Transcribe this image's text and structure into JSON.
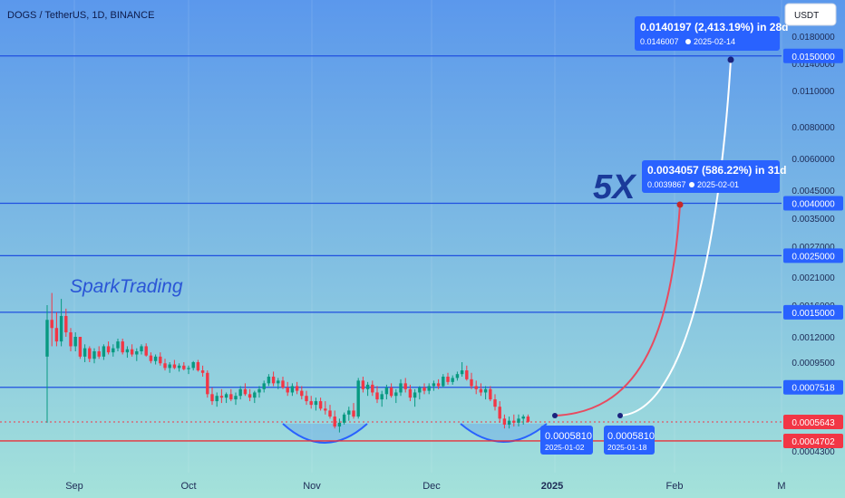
{
  "header": {
    "symbol_line": "DOGS / TetherUS, 1D, BINANCE",
    "currency_button": "USDT"
  },
  "watermark": "SparkTrading",
  "annotation_5x": "5X",
  "colors": {
    "bg_top": "#5b98ec",
    "bg_bottom": "#a4e2da",
    "level_blue": "#1f4fe0",
    "level_red": "#e8303a",
    "label_blue": "#2962ff",
    "label_red": "#f23645",
    "candle_up": "#089981",
    "candle_down": "#f23645",
    "arrow_red": "#e84a5f",
    "arrow_white": "#ffffff",
    "bowl": "#2962ff"
  },
  "chart_data": {
    "type": "candlestick",
    "title": "DOGS / TetherUS, 1D, BINANCE",
    "y_axis": {
      "scale": "log",
      "ticks": [
        "0.0180000",
        "0.0140000",
        "0.0110000",
        "0.0080000",
        "0.0060000",
        "0.0045000",
        "0.0035000",
        "0.0027000",
        "0.0021000",
        "0.0016000",
        "0.0012000",
        "0.0009500",
        "0.0007500",
        "0.0005643",
        "0.0004300"
      ]
    },
    "x_axis": {
      "ticks": [
        "Sep",
        "Oct",
        "Nov",
        "Dec",
        "2025",
        "Feb",
        "M"
      ]
    },
    "price_levels": [
      {
        "label": "0.0150000",
        "value": 0.015,
        "color": "blue"
      },
      {
        "label": "0.0040000",
        "value": 0.004,
        "color": "blue"
      },
      {
        "label": "0.0025000",
        "value": 0.0025,
        "color": "blue"
      },
      {
        "label": "0.0015000",
        "value": 0.0015,
        "color": "blue"
      },
      {
        "label": "0.0007518",
        "value": 0.0007518,
        "color": "blue"
      },
      {
        "label": "0.0004702",
        "value": 0.0004702,
        "color": "red"
      }
    ],
    "current_price": {
      "label": "0.0005643",
      "value": 0.0005643
    },
    "projections": [
      {
        "from_price": "0.0005810",
        "from_date": "2025-01-02",
        "to_price": 0.0039867,
        "to_date": "2025-02-01",
        "change_text": "0.0034057 (586.22%) in 31d",
        "target_text": "0.0039867",
        "target_date": "2025-02-01",
        "color": "red"
      },
      {
        "from_price": "0.0005810",
        "from_date": "2025-01-18",
        "to_price": 0.0146007,
        "to_date": "2025-02-14",
        "change_text": "0.0140197 (2,413.19%) in 28d",
        "target_text": "0.0146007",
        "target_date": "2025-02-14",
        "color": "white"
      }
    ],
    "candles": [
      [
        0.001,
        0.0016,
        0.00056,
        0.0014
      ],
      [
        0.0014,
        0.0018,
        0.0011,
        0.0013
      ],
      [
        0.0013,
        0.0015,
        0.0011,
        0.00115
      ],
      [
        0.00115,
        0.0017,
        0.0011,
        0.00145
      ],
      [
        0.00145,
        0.00155,
        0.0012,
        0.00125
      ],
      [
        0.00125,
        0.0013,
        0.00105,
        0.0011
      ],
      [
        0.0011,
        0.00125,
        0.00105,
        0.0012
      ],
      [
        0.0012,
        0.0012,
        0.00098,
        0.001
      ],
      [
        0.001,
        0.00112,
        0.00095,
        0.00108
      ],
      [
        0.00108,
        0.0011,
        0.00095,
        0.00098
      ],
      [
        0.00098,
        0.00108,
        0.00094,
        0.00105
      ],
      [
        0.00105,
        0.0011,
        0.00098,
        0.001
      ],
      [
        0.001,
        0.00112,
        0.00097,
        0.0011
      ],
      [
        0.0011,
        0.00115,
        0.00102,
        0.00104
      ],
      [
        0.00104,
        0.00112,
        0.001,
        0.00108
      ],
      [
        0.00108,
        0.00118,
        0.00105,
        0.00115
      ],
      [
        0.00115,
        0.00118,
        0.00102,
        0.00104
      ],
      [
        0.00104,
        0.0011,
        0.00099,
        0.00107
      ],
      [
        0.00107,
        0.00112,
        0.001,
        0.00102
      ],
      [
        0.00102,
        0.00108,
        0.00096,
        0.00105
      ],
      [
        0.00105,
        0.00112,
        0.00102,
        0.0011
      ],
      [
        0.0011,
        0.00113,
        0.001,
        0.00101
      ],
      [
        0.00101,
        0.00104,
        0.00094,
        0.00096
      ],
      [
        0.00096,
        0.00102,
        0.00093,
        0.001
      ],
      [
        0.001,
        0.00104,
        0.00092,
        0.00094
      ],
      [
        0.00094,
        0.00098,
        0.00088,
        0.0009
      ],
      [
        0.0009,
        0.00095,
        0.00086,
        0.00093
      ],
      [
        0.00093,
        0.00097,
        0.00089,
        0.0009
      ],
      [
        0.0009,
        0.00094,
        0.00087,
        0.00092
      ],
      [
        0.00092,
        0.00095,
        0.00088,
        0.00089
      ],
      [
        0.00089,
        0.00092,
        0.00085,
        0.0009
      ],
      [
        0.0009,
        0.00096,
        0.00088,
        0.00095
      ],
      [
        0.00095,
        0.00097,
        0.00087,
        0.00088
      ],
      [
        0.00088,
        0.00092,
        0.00083,
        0.00086
      ],
      [
        0.00086,
        0.00088,
        0.00069,
        0.00071
      ],
      [
        0.00071,
        0.00075,
        0.00065,
        0.00067
      ],
      [
        0.00067,
        0.00072,
        0.00064,
        0.0007
      ],
      [
        0.0007,
        0.00074,
        0.00066,
        0.00069
      ],
      [
        0.00069,
        0.00072,
        0.00066,
        0.00071
      ],
      [
        0.00071,
        0.00074,
        0.00067,
        0.00068
      ],
      [
        0.00068,
        0.00072,
        0.00065,
        0.0007
      ],
      [
        0.0007,
        0.00076,
        0.00068,
        0.00074
      ],
      [
        0.00074,
        0.00078,
        0.0007,
        0.00071
      ],
      [
        0.00071,
        0.00074,
        0.00067,
        0.00069
      ],
      [
        0.00069,
        0.00073,
        0.00066,
        0.00072
      ],
      [
        0.00072,
        0.00076,
        0.00069,
        0.00074
      ],
      [
        0.00074,
        0.0008,
        0.00072,
        0.00078
      ],
      [
        0.00078,
        0.00085,
        0.00076,
        0.00083
      ],
      [
        0.00083,
        0.00087,
        0.00076,
        0.00078
      ],
      [
        0.00078,
        0.00082,
        0.00074,
        0.0008
      ],
      [
        0.0008,
        0.00083,
        0.00074,
        0.00075
      ],
      [
        0.00075,
        0.00079,
        0.0007,
        0.00072
      ],
      [
        0.00072,
        0.00078,
        0.0007,
        0.00076
      ],
      [
        0.00076,
        0.00079,
        0.00071,
        0.00073
      ],
      [
        0.00073,
        0.00076,
        0.00068,
        0.0007
      ],
      [
        0.0007,
        0.00073,
        0.00065,
        0.00067
      ],
      [
        0.00067,
        0.0007,
        0.00063,
        0.00065
      ],
      [
        0.00065,
        0.00069,
        0.00062,
        0.00067
      ],
      [
        0.00067,
        0.00069,
        0.00062,
        0.00063
      ],
      [
        0.00063,
        0.00067,
        0.0006,
        0.00062
      ],
      [
        0.00062,
        0.00065,
        0.00058,
        0.00059
      ],
      [
        0.00059,
        0.00062,
        0.00053,
        0.00054
      ],
      [
        0.00054,
        0.00058,
        0.00051,
        0.00056
      ],
      [
        0.00056,
        0.00061,
        0.00055,
        0.0006
      ],
      [
        0.0006,
        0.00064,
        0.00057,
        0.00062
      ],
      [
        0.00062,
        0.00066,
        0.00058,
        0.00059
      ],
      [
        0.00059,
        0.00082,
        0.00058,
        0.0008
      ],
      [
        0.0008,
        0.00083,
        0.00072,
        0.00074
      ],
      [
        0.00074,
        0.00079,
        0.0007,
        0.00077
      ],
      [
        0.00077,
        0.0008,
        0.0007,
        0.00072
      ],
      [
        0.00072,
        0.00076,
        0.00066,
        0.00068
      ],
      [
        0.00068,
        0.00073,
        0.00064,
        0.00071
      ],
      [
        0.00071,
        0.00077,
        0.00068,
        0.00075
      ],
      [
        0.00075,
        0.00078,
        0.00069,
        0.0007
      ],
      [
        0.0007,
        0.00074,
        0.00066,
        0.00072
      ],
      [
        0.00072,
        0.00081,
        0.0007,
        0.00078
      ],
      [
        0.00078,
        0.00082,
        0.00072,
        0.00074
      ],
      [
        0.00074,
        0.00077,
        0.00067,
        0.00069
      ],
      [
        0.00069,
        0.00074,
        0.00064,
        0.00072
      ],
      [
        0.00072,
        0.00076,
        0.00068,
        0.00075
      ],
      [
        0.00075,
        0.00078,
        0.00071,
        0.00073
      ],
      [
        0.00073,
        0.00078,
        0.00071,
        0.00076
      ],
      [
        0.00076,
        0.0008,
        0.00073,
        0.00078
      ],
      [
        0.00078,
        0.00081,
        0.00074,
        0.00076
      ],
      [
        0.00076,
        0.00085,
        0.00075,
        0.00083
      ],
      [
        0.00083,
        0.00086,
        0.00077,
        0.00079
      ],
      [
        0.00079,
        0.00084,
        0.00077,
        0.00082
      ],
      [
        0.00082,
        0.00087,
        0.0008,
        0.00085
      ],
      [
        0.00085,
        0.00095,
        0.00083,
        0.00088
      ],
      [
        0.00088,
        0.00092,
        0.0008,
        0.00081
      ],
      [
        0.00081,
        0.00086,
        0.00074,
        0.00076
      ],
      [
        0.00076,
        0.0008,
        0.00071,
        0.00074
      ],
      [
        0.00074,
        0.00078,
        0.0007,
        0.00072
      ],
      [
        0.00072,
        0.00076,
        0.00068,
        0.00074
      ],
      [
        0.00074,
        0.00076,
        0.00067,
        0.00068
      ],
      [
        0.00068,
        0.00071,
        0.00062,
        0.00064
      ],
      [
        0.00064,
        0.00067,
        0.00056,
        0.00058
      ],
      [
        0.00058,
        0.0006,
        0.00053,
        0.00055
      ],
      [
        0.00055,
        0.00059,
        0.00053,
        0.00057
      ],
      [
        0.00057,
        0.0006,
        0.00054,
        0.00056
      ],
      [
        0.00056,
        0.0006,
        0.00054,
        0.00058
      ],
      [
        0.00058,
        0.0006,
        0.00055,
        0.00059
      ],
      [
        0.00059,
        0.0006,
        0.00056,
        0.000565
      ]
    ]
  }
}
